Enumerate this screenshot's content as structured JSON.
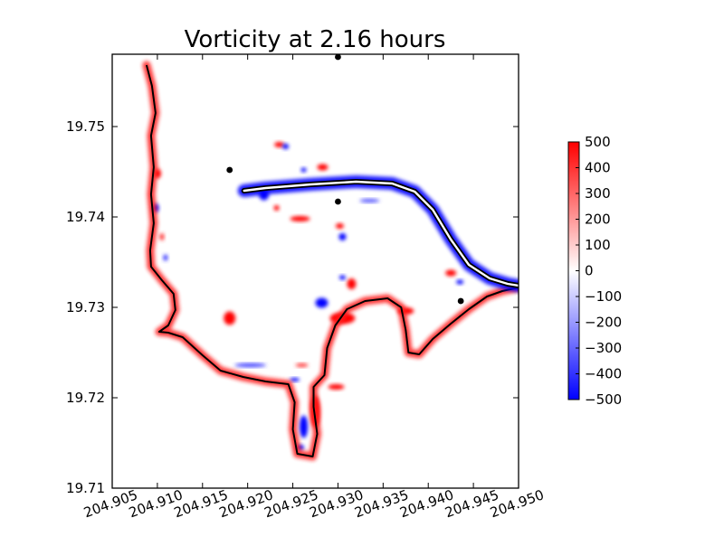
{
  "chart_data": {
    "type": "heatmap",
    "title": "Vorticity at 2.16 hours",
    "xlabel": "",
    "ylabel": "",
    "xlim": [
      204.905,
      204.95
    ],
    "ylim": [
      19.71,
      19.758
    ],
    "x_ticks": [
      204.905,
      204.91,
      204.915,
      204.92,
      204.925,
      204.93,
      204.935,
      204.94,
      204.945,
      204.95
    ],
    "x_tick_labels": [
      "204.905",
      "204.910",
      "204.915",
      "204.920",
      "204.925",
      "204.930",
      "204.935",
      "204.940",
      "204.945",
      "204.950"
    ],
    "y_ticks": [
      19.71,
      19.72,
      19.73,
      19.74,
      19.75
    ],
    "y_tick_labels": [
      "19.71",
      "19.72",
      "19.73",
      "19.74",
      "19.75"
    ],
    "grid": false,
    "colorbar": {
      "colormap": "bwr",
      "range": [
        -500,
        500
      ],
      "ticks": [
        500,
        400,
        300,
        200,
        100,
        0,
        -100,
        -200,
        -300,
        -400,
        -500
      ],
      "tick_labels": [
        "500",
        "400",
        "300",
        "200",
        "100",
        "0",
        "−100",
        "−200",
        "−300",
        "−400",
        "−500"
      ],
      "colors": {
        "low": "#0000ff",
        "mid": "#ffffff",
        "high": "#ff0000"
      }
    },
    "markers": [
      {
        "x": 204.918,
        "y": 19.7452
      },
      {
        "x": 204.93,
        "y": 19.7417
      },
      {
        "x": 204.93,
        "y": 19.7577
      },
      {
        "x": 204.9436,
        "y": 19.7307
      }
    ],
    "coastline": [
      [
        204.9088,
        19.7568
      ],
      [
        204.9094,
        19.7545
      ],
      [
        204.9098,
        19.7515
      ],
      [
        204.9093,
        19.749
      ],
      [
        204.9096,
        19.7455
      ],
      [
        204.9093,
        19.7425
      ],
      [
        204.9096,
        19.7393
      ],
      [
        204.9092,
        19.7363
      ],
      [
        204.9093,
        19.7345
      ],
      [
        204.9105,
        19.733
      ],
      [
        204.9118,
        19.7315
      ],
      [
        204.912,
        19.7297
      ],
      [
        204.9112,
        19.728
      ],
      [
        204.9102,
        19.7273
      ],
      [
        204.9112,
        19.7272
      ],
      [
        204.9128,
        19.7267
      ],
      [
        204.915,
        19.7247
      ],
      [
        204.917,
        19.723
      ],
      [
        204.9195,
        19.7223
      ],
      [
        204.922,
        19.7218
      ],
      [
        204.9245,
        19.7215
      ],
      [
        204.9252,
        19.7195
      ],
      [
        204.925,
        19.7165
      ],
      [
        204.9255,
        19.7138
      ],
      [
        204.9272,
        19.7135
      ],
      [
        204.9277,
        19.716
      ],
      [
        204.9273,
        19.719
      ],
      [
        204.9273,
        19.7212
      ],
      [
        204.9285,
        19.7225
      ],
      [
        204.9288,
        19.7255
      ],
      [
        204.9297,
        19.728
      ],
      [
        204.931,
        19.7298
      ],
      [
        204.933,
        19.7307
      ],
      [
        204.9355,
        19.731
      ],
      [
        204.937,
        19.73
      ],
      [
        204.9375,
        19.7275
      ],
      [
        204.9378,
        19.725
      ],
      [
        204.939,
        19.7248
      ],
      [
        204.9405,
        19.7265
      ],
      [
        204.9425,
        19.7282
      ],
      [
        204.9445,
        19.7298
      ],
      [
        204.9465,
        19.7312
      ],
      [
        204.9482,
        19.7318
      ],
      [
        204.95,
        19.7322
      ]
    ],
    "breakwater": [
      [
        204.9196,
        19.7429
      ],
      [
        204.922,
        19.7432
      ],
      [
        204.927,
        19.7436
      ],
      [
        204.932,
        19.7439
      ],
      [
        204.936,
        19.7437
      ],
      [
        204.9385,
        19.7428
      ],
      [
        204.9405,
        19.7408
      ],
      [
        204.9425,
        19.7375
      ],
      [
        204.9445,
        19.7347
      ],
      [
        204.9468,
        19.7332
      ],
      [
        204.9488,
        19.7326
      ],
      [
        204.95,
        19.7324
      ]
    ],
    "vorticity_features": [
      {
        "x": 204.918,
        "y": 19.7288,
        "w": 0.0013,
        "h": 0.0015,
        "value": 500
      },
      {
        "x": 204.91,
        "y": 19.7448,
        "w": 0.0008,
        "h": 0.0011,
        "value": 500
      },
      {
        "x": 204.9098,
        "y": 19.741,
        "w": 0.0007,
        "h": 0.001,
        "value": -500
      },
      {
        "x": 204.9235,
        "y": 19.748,
        "w": 0.0011,
        "h": 0.0006,
        "value": 500
      },
      {
        "x": 204.9242,
        "y": 19.7478,
        "w": 0.0007,
        "h": 0.0006,
        "value": -500
      },
      {
        "x": 204.9283,
        "y": 19.7455,
        "w": 0.0012,
        "h": 0.0007,
        "value": 500
      },
      {
        "x": 204.9262,
        "y": 19.7452,
        "w": 0.0006,
        "h": 0.0005,
        "value": -500
      },
      {
        "x": 204.9218,
        "y": 19.7425,
        "w": 0.0011,
        "h": 0.0013,
        "value": -500
      },
      {
        "x": 204.9232,
        "y": 19.741,
        "w": 0.0006,
        "h": 0.0006,
        "value": 500
      },
      {
        "x": 204.9258,
        "y": 19.7398,
        "w": 0.0022,
        "h": 0.0006,
        "value": 500
      },
      {
        "x": 204.9305,
        "y": 19.7378,
        "w": 0.0008,
        "h": 0.0008,
        "value": -500
      },
      {
        "x": 204.9302,
        "y": 19.739,
        "w": 0.0009,
        "h": 0.0006,
        "value": 500
      },
      {
        "x": 204.9335,
        "y": 19.7418,
        "w": 0.0022,
        "h": 0.0004,
        "value": -350
      },
      {
        "x": 204.9315,
        "y": 19.7326,
        "w": 0.001,
        "h": 0.0012,
        "value": 500
      },
      {
        "x": 204.9305,
        "y": 19.7333,
        "w": 0.0007,
        "h": 0.0005,
        "value": -500
      },
      {
        "x": 204.9282,
        "y": 19.7305,
        "w": 0.0014,
        "h": 0.0011,
        "value": -500
      },
      {
        "x": 204.9305,
        "y": 19.7288,
        "w": 0.0028,
        "h": 0.0013,
        "value": 500
      },
      {
        "x": 204.9375,
        "y": 19.7296,
        "w": 0.0018,
        "h": 0.0008,
        "value": 500
      },
      {
        "x": 204.9425,
        "y": 19.7338,
        "w": 0.0012,
        "h": 0.0007,
        "value": 500
      },
      {
        "x": 204.9435,
        "y": 19.7328,
        "w": 0.0008,
        "h": 0.0005,
        "value": -500
      },
      {
        "x": 204.9275,
        "y": 19.7185,
        "w": 0.0011,
        "h": 0.0035,
        "value": 500
      },
      {
        "x": 204.9262,
        "y": 19.7168,
        "w": 0.0009,
        "h": 0.0025,
        "value": -500
      },
      {
        "x": 204.9258,
        "y": 19.7145,
        "w": 0.0009,
        "h": 0.0006,
        "value": -500
      },
      {
        "x": 204.9298,
        "y": 19.7212,
        "w": 0.0018,
        "h": 0.0006,
        "value": 500
      },
      {
        "x": 204.9252,
        "y": 19.722,
        "w": 0.0011,
        "h": 0.0004,
        "value": -500
      },
      {
        "x": 204.9105,
        "y": 19.7378,
        "w": 0.0005,
        "h": 0.0008,
        "value": 400
      },
      {
        "x": 204.9109,
        "y": 19.7355,
        "w": 0.0005,
        "h": 0.0007,
        "value": -400
      },
      {
        "x": 204.9203,
        "y": 19.7236,
        "w": 0.0035,
        "h": 0.0004,
        "value": -400
      },
      {
        "x": 204.926,
        "y": 19.7236,
        "w": 0.0014,
        "h": 0.0004,
        "value": 400
      }
    ]
  }
}
